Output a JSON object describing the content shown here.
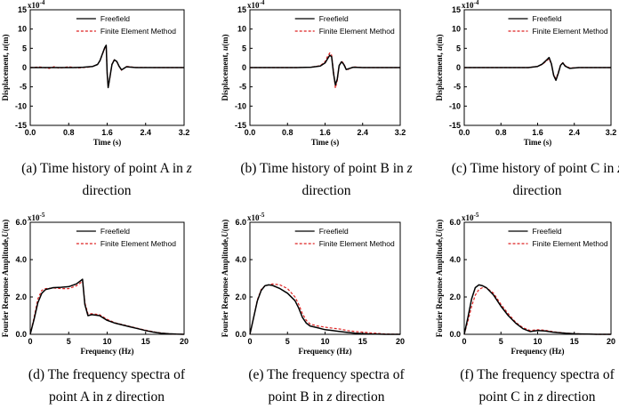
{
  "chart_data": [
    {
      "id": "a",
      "type": "line",
      "title": "",
      "caption_lines": [
        "(a) Time history of point A in {z}",
        "direction"
      ],
      "caption_var": "z",
      "xlabel": "Time (s)",
      "ylabel_pre": "Displacement, ",
      "ylabel_var": "u",
      "ylabel_post": "(m)",
      "scale_base": "x10",
      "scale_exp": "-4",
      "xlim": [
        0,
        3.2
      ],
      "ylim": [
        -15,
        15
      ],
      "xticks": [
        "0.0",
        "0.8",
        "1.6",
        "2.4",
        "3.2"
      ],
      "yticks": [
        "15",
        "10",
        "5",
        "0",
        "-5",
        "-10",
        "-15"
      ],
      "legend": [
        "Freefield",
        "Finite Element Method"
      ],
      "series": [
        {
          "name": "Freefield",
          "style": "solid",
          "color": "#000000",
          "x": [
            0,
            0.3,
            0.6,
            0.9,
            1.1,
            1.3,
            1.4,
            1.45,
            1.5,
            1.55,
            1.58,
            1.6,
            1.62,
            1.65,
            1.7,
            1.75,
            1.8,
            1.85,
            1.9,
            2.0,
            2.2,
            2.6,
            3.2
          ],
          "y": [
            0,
            0,
            0,
            0,
            0.1,
            0.3,
            0.8,
            1.8,
            3.5,
            5.2,
            5.8,
            -1.5,
            -5.2,
            -3.0,
            0.8,
            2.0,
            1.6,
            0.3,
            -0.6,
            0.2,
            0,
            0,
            0
          ]
        },
        {
          "name": "Finite Element Method",
          "style": "dashed",
          "color": "#dd2222",
          "x": [
            0,
            0.2,
            0.4,
            0.5,
            0.6,
            0.8,
            1.0,
            1.2,
            1.3,
            1.4,
            1.45,
            1.5,
            1.55,
            1.58,
            1.6,
            1.62,
            1.65,
            1.7,
            1.75,
            1.8,
            1.85,
            1.9,
            2.0,
            2.2,
            2.6,
            3.2
          ],
          "y": [
            0,
            0.15,
            -0.2,
            0.25,
            -0.15,
            0.2,
            -0.1,
            0.1,
            0.3,
            0.8,
            1.8,
            3.4,
            5.0,
            5.6,
            -1.3,
            -5.0,
            -3.2,
            0.9,
            2.1,
            1.5,
            0.2,
            -0.7,
            0.3,
            0.05,
            0,
            0
          ]
        }
      ]
    },
    {
      "id": "b",
      "type": "line",
      "title": "",
      "caption_lines": [
        "(b) Time history of point B in {z}",
        "direction"
      ],
      "caption_var": "z",
      "xlabel": "Time (s)",
      "ylabel_pre": "Displacement, ",
      "ylabel_var": "u",
      "ylabel_post": "(m)",
      "scale_base": "x10",
      "scale_exp": "-4",
      "xlim": [
        0,
        3.2
      ],
      "ylim": [
        -15,
        15
      ],
      "xticks": [
        "0.0",
        "0.8",
        "1.6",
        "2.4",
        "3.2"
      ],
      "yticks": [
        "15",
        "10",
        "5",
        "0",
        "-5",
        "-10",
        "-15"
      ],
      "legend": [
        "Freefield",
        "Finite Element Method"
      ],
      "series": [
        {
          "name": "Freefield",
          "style": "solid",
          "color": "#000000",
          "x": [
            0,
            0.5,
            1.0,
            1.3,
            1.5,
            1.6,
            1.65,
            1.7,
            1.74,
            1.78,
            1.82,
            1.86,
            1.9,
            1.95,
            2.0,
            2.05,
            2.1,
            2.2,
            2.4,
            2.8,
            3.2
          ],
          "y": [
            0,
            0,
            0,
            0.1,
            0.4,
            1.2,
            2.2,
            3.2,
            2.8,
            -1.5,
            -4.5,
            -3.0,
            0.5,
            1.5,
            0.8,
            -0.5,
            -0.3,
            0.1,
            0,
            0,
            0
          ]
        },
        {
          "name": "Finite Element Method",
          "style": "dashed",
          "color": "#dd2222",
          "x": [
            0,
            0.5,
            1.0,
            1.3,
            1.5,
            1.6,
            1.65,
            1.7,
            1.74,
            1.78,
            1.82,
            1.86,
            1.9,
            1.95,
            2.0,
            2.05,
            2.1,
            2.2,
            2.4,
            2.8,
            3.2
          ],
          "y": [
            0,
            0,
            0,
            0.1,
            0.5,
            1.5,
            2.8,
            3.8,
            3.2,
            -1.0,
            -5.3,
            -3.4,
            0.4,
            1.7,
            1.0,
            -0.4,
            -0.5,
            0.2,
            0,
            0,
            0
          ]
        }
      ]
    },
    {
      "id": "c",
      "type": "line",
      "title": "",
      "caption_lines": [
        "(c) Time history of point C in {z}",
        "direction"
      ],
      "caption_var": "z",
      "xlabel": "Time (s)",
      "ylabel_pre": "Displacement, ",
      "ylabel_var": "u",
      "ylabel_post": "(m)",
      "scale_base": "x10",
      "scale_exp": "-4",
      "xlim": [
        0,
        3.2
      ],
      "ylim": [
        -15,
        15
      ],
      "xticks": [
        "0.0",
        "0.8",
        "1.6",
        "2.4",
        "3.2"
      ],
      "yticks": [
        "15",
        "10",
        "5",
        "0",
        "-5",
        "-10",
        "-15"
      ],
      "legend": [
        "Freefield",
        "Finite Element Method"
      ],
      "series": [
        {
          "name": "Freefield",
          "style": "solid",
          "color": "#000000",
          "x": [
            0,
            0.5,
            1.0,
            1.4,
            1.6,
            1.7,
            1.8,
            1.85,
            1.9,
            1.95,
            2.0,
            2.05,
            2.1,
            2.15,
            2.2,
            2.3,
            2.5,
            2.8,
            3.2
          ],
          "y": [
            0,
            0,
            0,
            0,
            0.3,
            0.9,
            2.0,
            2.6,
            1.0,
            -2.0,
            -3.3,
            -1.5,
            0.6,
            1.2,
            0.4,
            -0.2,
            0,
            0,
            0
          ]
        },
        {
          "name": "Finite Element Method",
          "style": "dashed",
          "color": "#dd2222",
          "x": [
            0,
            0.5,
            1.0,
            1.4,
            1.6,
            1.7,
            1.8,
            1.85,
            1.9,
            1.95,
            2.0,
            2.05,
            2.1,
            2.15,
            2.2,
            2.3,
            2.5,
            2.8,
            3.2
          ],
          "y": [
            0,
            0,
            0,
            0,
            0.3,
            0.8,
            1.8,
            2.3,
            0.8,
            -1.8,
            -2.9,
            -1.3,
            0.7,
            1.3,
            0.5,
            -0.1,
            0,
            0,
            0
          ]
        }
      ]
    },
    {
      "id": "d",
      "type": "line",
      "title": "",
      "caption_lines": [
        "(d) The frequency spectra of",
        "point A in {z} direction"
      ],
      "caption_var": "z",
      "xlabel": "Frequency (Hz)",
      "ylabel_pre": "Fourier Response Amplitude,",
      "ylabel_var": "U",
      "ylabel_post": "(m)",
      "scale_base": "x10",
      "scale_exp": "-5",
      "xlim": [
        0,
        20
      ],
      "ylim": [
        0,
        6
      ],
      "xticks": [
        "0",
        "5",
        "10",
        "15",
        "20"
      ],
      "yticks": [
        "6.0",
        "4.0",
        "2.0",
        "0.0"
      ],
      "legend": [
        "Freefield",
        "Finite Element Method"
      ],
      "series": [
        {
          "name": "Freefield",
          "style": "solid",
          "color": "#000000",
          "x": [
            0,
            0.5,
            1,
            1.5,
            2,
            3,
            4,
            5,
            6,
            6.5,
            6.8,
            7.1,
            7.5,
            8,
            9,
            10,
            11,
            12,
            13,
            14,
            15,
            16,
            17,
            18,
            19,
            20
          ],
          "y": [
            0,
            0.8,
            1.7,
            2.2,
            2.4,
            2.5,
            2.52,
            2.55,
            2.7,
            2.85,
            2.95,
            1.6,
            1.0,
            1.05,
            1.0,
            0.75,
            0.6,
            0.5,
            0.4,
            0.3,
            0.2,
            0.12,
            0.06,
            0.03,
            0.01,
            0
          ]
        },
        {
          "name": "Finite Element Method",
          "style": "dashed",
          "color": "#dd2222",
          "x": [
            0,
            0.5,
            1,
            1.5,
            2,
            3,
            4,
            5,
            6,
            6.5,
            6.8,
            7.1,
            7.5,
            8,
            9,
            10,
            11,
            12,
            13,
            14,
            15,
            16,
            17,
            18,
            19,
            20
          ],
          "y": [
            0,
            0.9,
            1.9,
            2.35,
            2.45,
            2.48,
            2.45,
            2.45,
            2.6,
            2.75,
            2.85,
            1.7,
            1.1,
            1.1,
            1.05,
            0.8,
            0.62,
            0.52,
            0.42,
            0.32,
            0.22,
            0.14,
            0.07,
            0.03,
            0.01,
            0
          ]
        }
      ]
    },
    {
      "id": "e",
      "type": "line",
      "title": "",
      "caption_lines": [
        "(e) The frequency spectra of",
        "point B in {z} direction"
      ],
      "caption_var": "z",
      "xlabel": "Frequency (Hz)",
      "ylabel_pre": "Fourier Response Amplitude,",
      "ylabel_var": "U",
      "ylabel_post": "(m)",
      "scale_base": "x10",
      "scale_exp": "-5",
      "xlim": [
        0,
        20
      ],
      "ylim": [
        0,
        6
      ],
      "xticks": [
        "0",
        "5",
        "10",
        "15",
        "20"
      ],
      "yticks": [
        "6.0",
        "4.0",
        "2.0",
        "0.0"
      ],
      "legend": [
        "Freefield",
        "Finite Element Method"
      ],
      "series": [
        {
          "name": "Freefield",
          "style": "solid",
          "color": "#000000",
          "x": [
            0,
            0.5,
            1,
            1.5,
            2,
            2.5,
            3,
            4,
            5,
            6,
            6.5,
            7,
            7.5,
            8,
            9,
            10,
            11,
            12,
            13,
            14,
            15,
            16,
            17,
            18,
            19,
            20
          ],
          "y": [
            0,
            0.9,
            1.8,
            2.35,
            2.6,
            2.65,
            2.62,
            2.45,
            2.2,
            1.8,
            1.4,
            0.9,
            0.6,
            0.45,
            0.35,
            0.25,
            0.2,
            0.15,
            0.1,
            0.06,
            0.04,
            0.02,
            0.01,
            0,
            0,
            0
          ]
        },
        {
          "name": "Finite Element Method",
          "style": "dashed",
          "color": "#dd2222",
          "x": [
            0,
            0.5,
            1,
            1.5,
            2,
            2.5,
            3,
            4,
            5,
            6,
            6.5,
            7,
            7.5,
            8,
            9,
            10,
            11,
            12,
            13,
            14,
            15,
            16,
            17,
            18,
            19,
            20
          ],
          "y": [
            0,
            0.9,
            1.85,
            2.4,
            2.6,
            2.65,
            2.7,
            2.65,
            2.45,
            2.0,
            1.6,
            1.1,
            0.75,
            0.55,
            0.45,
            0.38,
            0.33,
            0.28,
            0.2,
            0.15,
            0.12,
            0.08,
            0.05,
            0.02,
            0.01,
            0
          ]
        }
      ]
    },
    {
      "id": "f",
      "type": "line",
      "title": "",
      "caption_lines": [
        "(f) The frequency spectra of",
        "point C in {z} direction"
      ],
      "caption_var": "z",
      "xlabel": "Frequency (Hz)",
      "ylabel_pre": "Fourier Response Amplitude,",
      "ylabel_var": "U",
      "ylabel_post": "(m)",
      "scale_base": "x10",
      "scale_exp": "-5",
      "xlim": [
        0,
        20
      ],
      "ylim": [
        0,
        6
      ],
      "xticks": [
        "0",
        "5",
        "10",
        "15",
        "20"
      ],
      "yticks": [
        "6.0",
        "4.0",
        "2.0",
        "0.0"
      ],
      "legend": [
        "Freefield",
        "Finite Element Method"
      ],
      "series": [
        {
          "name": "Freefield",
          "style": "solid",
          "color": "#000000",
          "x": [
            0,
            0.5,
            1,
            1.5,
            2,
            2.5,
            3,
            4,
            5,
            6,
            7,
            8,
            9,
            10,
            11,
            12,
            13,
            14,
            15,
            16,
            17,
            18,
            19,
            20
          ],
          "y": [
            0,
            0.9,
            1.9,
            2.5,
            2.65,
            2.6,
            2.5,
            2.1,
            1.5,
            1.0,
            0.6,
            0.3,
            0.15,
            0.2,
            0.18,
            0.12,
            0.08,
            0.05,
            0.03,
            0.02,
            0.01,
            0,
            0,
            0
          ]
        },
        {
          "name": "Finite Element Method",
          "style": "dashed",
          "color": "#dd2222",
          "x": [
            0,
            0.5,
            1,
            1.5,
            2,
            2.5,
            3,
            4,
            5,
            6,
            7,
            8,
            9,
            10,
            11,
            12,
            13,
            14,
            15,
            16,
            17,
            18,
            19,
            20
          ],
          "y": [
            0,
            0.7,
            1.5,
            2.1,
            2.4,
            2.5,
            2.5,
            2.2,
            1.6,
            1.1,
            0.65,
            0.35,
            0.2,
            0.25,
            0.22,
            0.15,
            0.1,
            0.06,
            0.03,
            0.02,
            0.01,
            0,
            0,
            0
          ]
        }
      ]
    }
  ]
}
